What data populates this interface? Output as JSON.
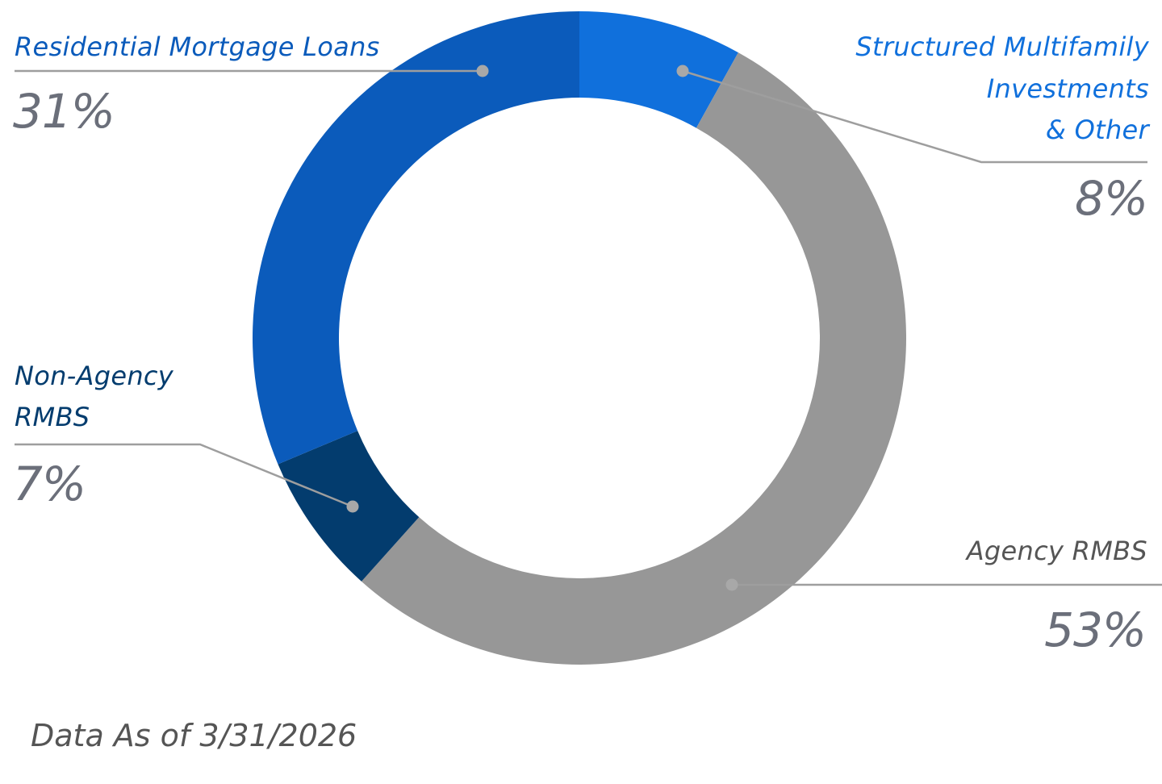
{
  "chart_data": {
    "type": "pie",
    "subtype": "donut",
    "slices": [
      {
        "name": "Structured Multifamily Investments & Other",
        "value": 8,
        "label": "8%",
        "color": "#1070dc"
      },
      {
        "name": "Agency RMBS",
        "value": 53,
        "label": "53%",
        "color": "#979797"
      },
      {
        "name": "Non-Agency RMBS",
        "value": 7,
        "label": "7%",
        "color": "#033c6e"
      },
      {
        "name": "Residential Mortgage Loans",
        "value": 31,
        "label": "31%",
        "color": "#0b5bbb"
      }
    ],
    "start_angle": "12 o'clock",
    "direction": "clockwise",
    "legend": "callout labels",
    "leader_line_color": "#9e9e9e"
  },
  "labels": {
    "residential": {
      "line1": "Residential Mortgage Loans",
      "pct": "31%",
      "color": "#0b5bbb"
    },
    "structured": {
      "line1": "Structured Multifamily",
      "line2": "Investments",
      "line3": "& Other",
      "pct": "8%",
      "color": "#1070dc"
    },
    "nonagency": {
      "line1": "Non-Agency",
      "line2": "RMBS",
      "pct": "7%",
      "color": "#033c6e"
    },
    "agency": {
      "line1": "Agency RMBS",
      "pct": "53%",
      "color": "#555555"
    }
  },
  "footer": "Data As of 3/31/2026"
}
